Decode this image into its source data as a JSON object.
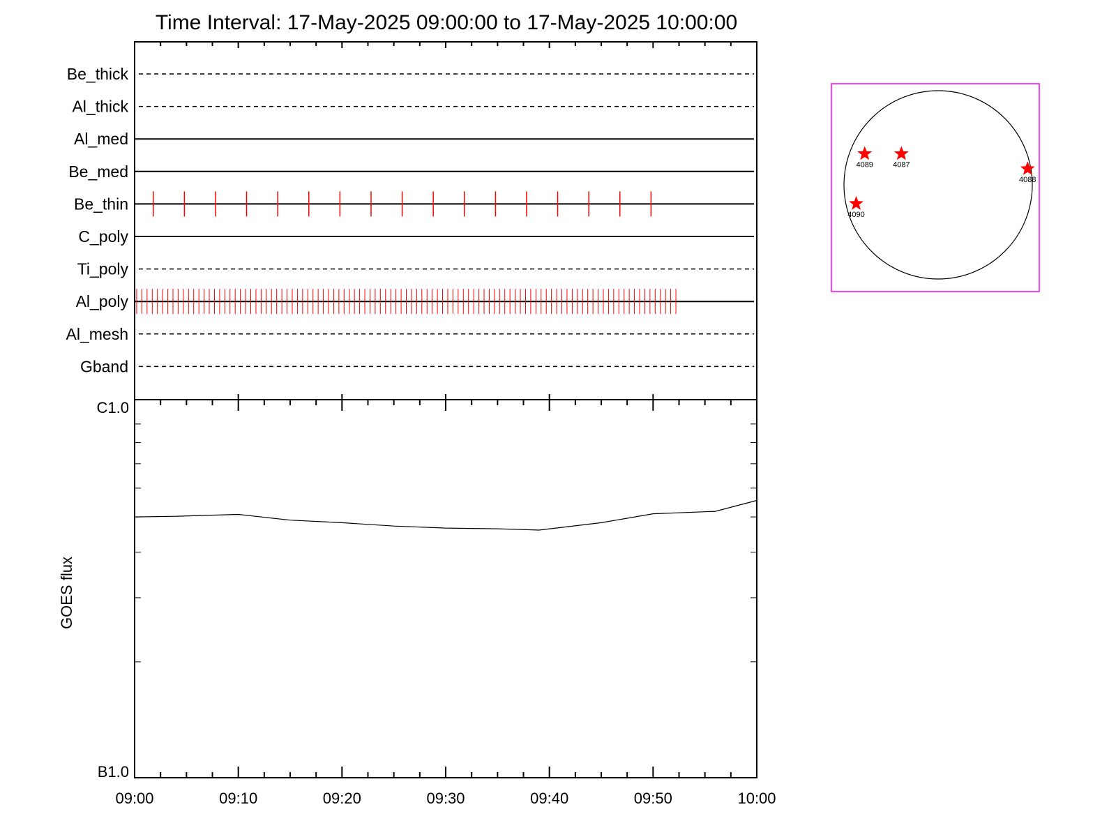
{
  "chart_data": [
    {
      "type": "timeline",
      "title": "Time Interval: 17-May-2025 09:00:00 to 17-May-2025 10:00:00",
      "x_range": [
        "09:00",
        "10:00"
      ],
      "channels": [
        {
          "name": "Be_thick",
          "line": "dashed",
          "events": []
        },
        {
          "name": "Al_thick",
          "line": "dashed",
          "events": []
        },
        {
          "name": "Al_med",
          "line": "solid",
          "events": []
        },
        {
          "name": "Be_med",
          "line": "solid",
          "events": []
        },
        {
          "name": "Be_thin",
          "line": "solid",
          "event_start": 1.8,
          "event_interval": 3.0,
          "event_count": 17
        },
        {
          "name": "C_poly",
          "line": "solid",
          "events": []
        },
        {
          "name": "Ti_poly",
          "line": "dashed",
          "events": []
        },
        {
          "name": "Al_poly",
          "line": "solid",
          "event_start": 0.2,
          "event_interval": 0.5,
          "event_count": 105,
          "major_event_start": 5.0,
          "major_event_interval": 3.0
        },
        {
          "name": "Al_mesh",
          "line": "dashed",
          "events": []
        },
        {
          "name": "Gband",
          "line": "dashed",
          "events": []
        }
      ]
    },
    {
      "type": "line",
      "ylabel": "GOES flux",
      "y_tick_labels": [
        "C1.0",
        "B1.0"
      ],
      "ylog": true,
      "ylim": [
        1e-07,
        1e-06
      ],
      "x_tick_labels": [
        "09:00",
        "09:10",
        "09:20",
        "09:30",
        "09:40",
        "09:50",
        "10:00"
      ],
      "x_minutes": [
        0,
        4,
        10,
        15,
        20,
        25,
        30,
        35,
        39,
        45,
        50,
        56,
        60
      ],
      "y_values": [
        5e-07,
        5.02e-07,
        5.08e-07,
        4.9e-07,
        4.82e-07,
        4.72e-07,
        4.66e-07,
        4.64e-07,
        4.6e-07,
        4.82e-07,
        5.1e-07,
        5.18e-07,
        5.55e-07
      ]
    },
    {
      "type": "scatter",
      "stars_color": "#ff0000",
      "frame_color": "#ff00ff",
      "regions": [
        {
          "label": "4089",
          "x": -0.78,
          "y": 0.33
        },
        {
          "label": "4087",
          "x": -0.39,
          "y": 0.33
        },
        {
          "label": "4088",
          "x": 0.95,
          "y": 0.17
        },
        {
          "label": "4090",
          "x": -0.87,
          "y": -0.2
        }
      ]
    }
  ]
}
